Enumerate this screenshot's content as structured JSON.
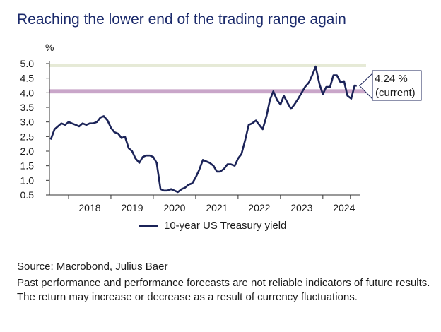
{
  "title": "Reaching the lower end of the trading range again",
  "source": "Source: Macrobond, Julius Baer",
  "disclaimer": "Past performance and performance forecasts are not reliable indicators of future results. The return may increase or decrease as a result of currency fluctuations.",
  "chart_data": {
    "type": "line",
    "title": "Reaching the lower end of the trading range again",
    "ylabel": "%",
    "xlabel": "",
    "ylim": [
      0.5,
      5.0
    ],
    "xlim": [
      2017.55,
      2024.82
    ],
    "yticks": [
      "5.0",
      "4.5",
      "4.0",
      "3.5",
      "3.0",
      "2.5",
      "2.0",
      "1.5",
      "1.0",
      "0.5"
    ],
    "xtick_labels": [
      "2018",
      "2019",
      "2020",
      "2021",
      "2022",
      "2023",
      "2024"
    ],
    "bands": [
      {
        "range": [
          4.88,
          5.0
        ],
        "color": "#e6ead6"
      },
      {
        "range": [
          3.98,
          4.12
        ],
        "color": "#c9a6c9"
      }
    ],
    "annotation": {
      "value_label": "4.24 %",
      "note": "(current)",
      "value": 4.24
    },
    "series": [
      {
        "name": "10-year US Treasury yield",
        "color": "#1b2358",
        "x": [
          2017.58,
          2017.67,
          2017.75,
          2017.83,
          2017.92,
          2018.0,
          2018.08,
          2018.17,
          2018.25,
          2018.33,
          2018.42,
          2018.5,
          2018.58,
          2018.67,
          2018.75,
          2018.83,
          2018.92,
          2019.0,
          2019.08,
          2019.17,
          2019.25,
          2019.33,
          2019.42,
          2019.5,
          2019.58,
          2019.67,
          2019.75,
          2019.83,
          2019.92,
          2020.0,
          2020.08,
          2020.17,
          2020.25,
          2020.33,
          2020.42,
          2020.5,
          2020.58,
          2020.67,
          2020.75,
          2020.83,
          2020.92,
          2021.0,
          2021.08,
          2021.17,
          2021.25,
          2021.33,
          2021.42,
          2021.5,
          2021.58,
          2021.67,
          2021.75,
          2021.83,
          2021.92,
          2022.0,
          2022.08,
          2022.17,
          2022.25,
          2022.33,
          2022.42,
          2022.5,
          2022.58,
          2022.67,
          2022.75,
          2022.83,
          2022.92,
          2023.0,
          2023.08,
          2023.17,
          2023.25,
          2023.33,
          2023.42,
          2023.5,
          2023.58,
          2023.67,
          2023.75,
          2023.83,
          2023.92,
          2024.0,
          2024.08,
          2024.17,
          2024.25,
          2024.33,
          2024.42,
          2024.5,
          2024.58,
          2024.67,
          2024.75,
          2024.8
        ],
        "values": [
          2.4,
          2.75,
          2.85,
          2.95,
          2.9,
          3.0,
          2.95,
          2.9,
          2.85,
          2.95,
          2.9,
          2.95,
          2.95,
          3.0,
          3.15,
          3.2,
          3.05,
          2.8,
          2.65,
          2.6,
          2.45,
          2.5,
          2.1,
          2.0,
          1.75,
          1.6,
          1.8,
          1.85,
          1.85,
          1.8,
          1.6,
          0.7,
          0.65,
          0.65,
          0.7,
          0.65,
          0.6,
          0.7,
          0.75,
          0.85,
          0.9,
          1.1,
          1.35,
          1.7,
          1.65,
          1.6,
          1.5,
          1.3,
          1.3,
          1.4,
          1.55,
          1.55,
          1.5,
          1.75,
          1.9,
          2.4,
          2.9,
          2.95,
          3.05,
          2.9,
          2.75,
          3.2,
          3.75,
          4.05,
          3.75,
          3.6,
          3.9,
          3.65,
          3.45,
          3.6,
          3.8,
          4.0,
          4.2,
          4.35,
          4.6,
          4.9,
          4.3,
          3.95,
          4.2,
          4.2,
          4.6,
          4.6,
          4.35,
          4.4,
          3.9,
          3.8,
          4.25,
          4.24
        ]
      }
    ],
    "grid": false,
    "legend": "bottom-center"
  }
}
